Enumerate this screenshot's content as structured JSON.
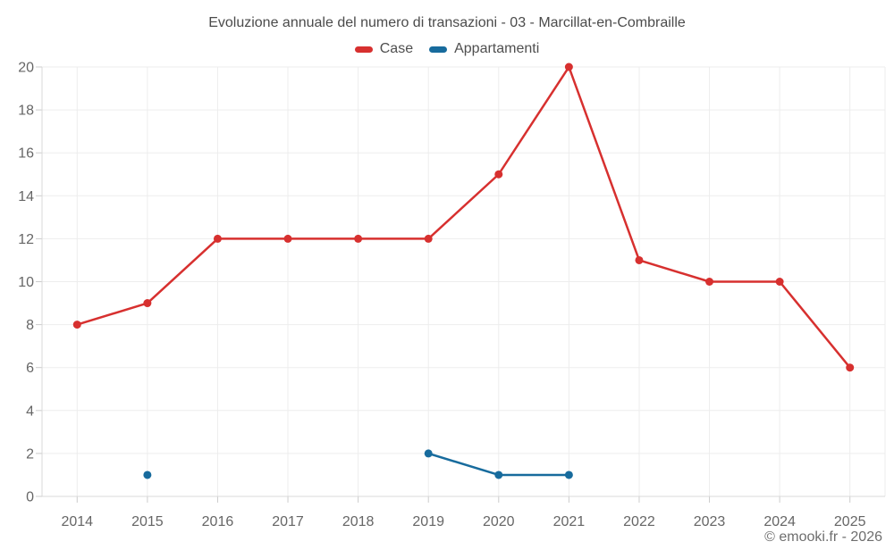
{
  "chart_data": {
    "type": "line",
    "title": "Evoluzione annuale del numero di transazioni - 03 - Marcillat-en-Combraille",
    "categories": [
      "2014",
      "2015",
      "2016",
      "2017",
      "2018",
      "2019",
      "2020",
      "2021",
      "2022",
      "2023",
      "2024",
      "2025"
    ],
    "series": [
      {
        "name": "Case",
        "color": "#d7302f",
        "values": [
          8,
          9,
          12,
          12,
          12,
          12,
          15,
          20,
          11,
          10,
          10,
          6
        ]
      },
      {
        "name": "Appartamenti",
        "color": "#176b9d",
        "values": [
          null,
          1,
          null,
          null,
          null,
          2,
          1,
          1,
          null,
          null,
          null,
          null
        ]
      }
    ],
    "ylim": [
      0,
      20
    ],
    "ytick_step": 2,
    "xlabel": "",
    "ylabel": "",
    "grid": "on",
    "legend_position": "top-center"
  },
  "footer": {
    "credit": "© emooki.fr - 2026"
  },
  "style_colors": {
    "gridline": "#ededed",
    "axis_line": "#d8d8d8",
    "tick_mark": "#cccccc",
    "axis_label": "#666666"
  }
}
